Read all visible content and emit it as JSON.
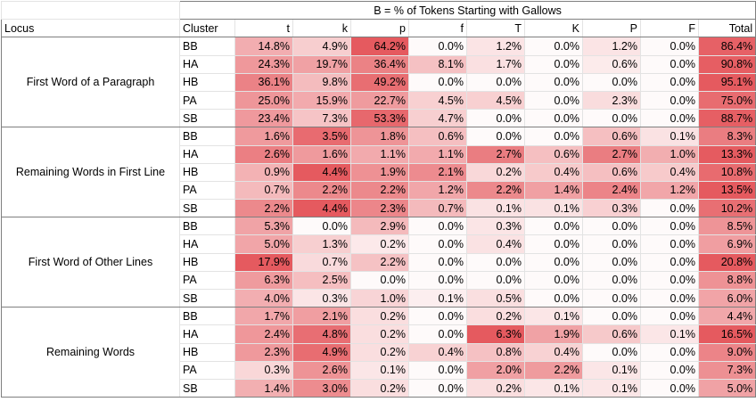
{
  "chart_data": {
    "type": "heatmap",
    "title": "B = % of Tokens Starting with Gallows",
    "row_header": "Locus",
    "cluster_header": "Cluster",
    "columns": [
      "t",
      "k",
      "p",
      "f",
      "T",
      "K",
      "P",
      "F",
      "Total"
    ],
    "heat_color": "#e55a5f",
    "groups": [
      {
        "locus": "First Word of a Paragraph",
        "rows": [
          {
            "cluster": "BB",
            "values": [
              "14.8%",
              "4.9%",
              "64.2%",
              "0.0%",
              "1.2%",
              "0.0%",
              "1.2%",
              "0.0%",
              "86.4%"
            ]
          },
          {
            "cluster": "HA",
            "values": [
              "24.3%",
              "19.7%",
              "36.4%",
              "8.1%",
              "1.7%",
              "0.0%",
              "0.6%",
              "0.0%",
              "90.8%"
            ]
          },
          {
            "cluster": "HB",
            "values": [
              "36.1%",
              "9.8%",
              "49.2%",
              "0.0%",
              "0.0%",
              "0.0%",
              "0.0%",
              "0.0%",
              "95.1%"
            ]
          },
          {
            "cluster": "PA",
            "values": [
              "25.0%",
              "15.9%",
              "22.7%",
              "4.5%",
              "4.5%",
              "0.0%",
              "2.3%",
              "0.0%",
              "75.0%"
            ]
          },
          {
            "cluster": "SB",
            "values": [
              "23.4%",
              "7.3%",
              "53.3%",
              "4.7%",
              "0.0%",
              "0.0%",
              "0.0%",
              "0.0%",
              "88.7%"
            ]
          }
        ]
      },
      {
        "locus": "Remaining Words in First Line",
        "rows": [
          {
            "cluster": "BB",
            "values": [
              "1.6%",
              "3.5%",
              "1.8%",
              "0.6%",
              "0.0%",
              "0.0%",
              "0.6%",
              "0.1%",
              "8.3%"
            ]
          },
          {
            "cluster": "HA",
            "values": [
              "2.6%",
              "1.6%",
              "1.1%",
              "1.1%",
              "2.7%",
              "0.6%",
              "2.7%",
              "1.0%",
              "13.3%"
            ]
          },
          {
            "cluster": "HB",
            "values": [
              "0.9%",
              "4.4%",
              "1.9%",
              "2.1%",
              "0.2%",
              "0.4%",
              "0.6%",
              "0.4%",
              "10.8%"
            ]
          },
          {
            "cluster": "PA",
            "values": [
              "0.7%",
              "2.2%",
              "2.2%",
              "1.2%",
              "2.2%",
              "1.4%",
              "2.4%",
              "1.2%",
              "13.5%"
            ]
          },
          {
            "cluster": "SB",
            "values": [
              "2.2%",
              "4.4%",
              "2.3%",
              "0.7%",
              "0.1%",
              "0.1%",
              "0.3%",
              "0.0%",
              "10.2%"
            ]
          }
        ]
      },
      {
        "locus": "First Word of Other Lines",
        "rows": [
          {
            "cluster": "BB",
            "values": [
              "5.3%",
              "0.0%",
              "2.9%",
              "0.0%",
              "0.3%",
              "0.0%",
              "0.0%",
              "0.0%",
              "8.5%"
            ]
          },
          {
            "cluster": "HA",
            "values": [
              "5.0%",
              "1.3%",
              "0.2%",
              "0.0%",
              "0.4%",
              "0.0%",
              "0.0%",
              "0.0%",
              "6.9%"
            ]
          },
          {
            "cluster": "HB",
            "values": [
              "17.9%",
              "0.7%",
              "2.2%",
              "0.0%",
              "0.0%",
              "0.0%",
              "0.0%",
              "0.0%",
              "20.8%"
            ]
          },
          {
            "cluster": "PA",
            "values": [
              "6.3%",
              "2.5%",
              "0.0%",
              "0.0%",
              "0.0%",
              "0.0%",
              "0.0%",
              "0.0%",
              "8.8%"
            ]
          },
          {
            "cluster": "SB",
            "values": [
              "4.0%",
              "0.3%",
              "1.0%",
              "0.1%",
              "0.5%",
              "0.0%",
              "0.0%",
              "0.0%",
              "6.0%"
            ]
          }
        ]
      },
      {
        "locus": "Remaining Words",
        "rows": [
          {
            "cluster": "BB",
            "values": [
              "1.7%",
              "2.1%",
              "0.2%",
              "0.0%",
              "0.2%",
              "0.1%",
              "0.0%",
              "0.0%",
              "4.4%"
            ]
          },
          {
            "cluster": "HA",
            "values": [
              "2.4%",
              "4.8%",
              "0.2%",
              "0.0%",
              "6.3%",
              "1.9%",
              "0.6%",
              "0.1%",
              "16.5%"
            ]
          },
          {
            "cluster": "HB",
            "values": [
              "2.3%",
              "4.9%",
              "0.2%",
              "0.4%",
              "0.8%",
              "0.4%",
              "0.0%",
              "0.0%",
              "9.0%"
            ]
          },
          {
            "cluster": "PA",
            "values": [
              "0.3%",
              "2.6%",
              "0.1%",
              "0.0%",
              "2.0%",
              "2.2%",
              "0.1%",
              "0.0%",
              "7.3%"
            ]
          },
          {
            "cluster": "SB",
            "values": [
              "1.4%",
              "3.0%",
              "0.2%",
              "0.0%",
              "0.2%",
              "0.1%",
              "0.1%",
              "0.0%",
              "5.0%"
            ]
          }
        ]
      }
    ]
  }
}
